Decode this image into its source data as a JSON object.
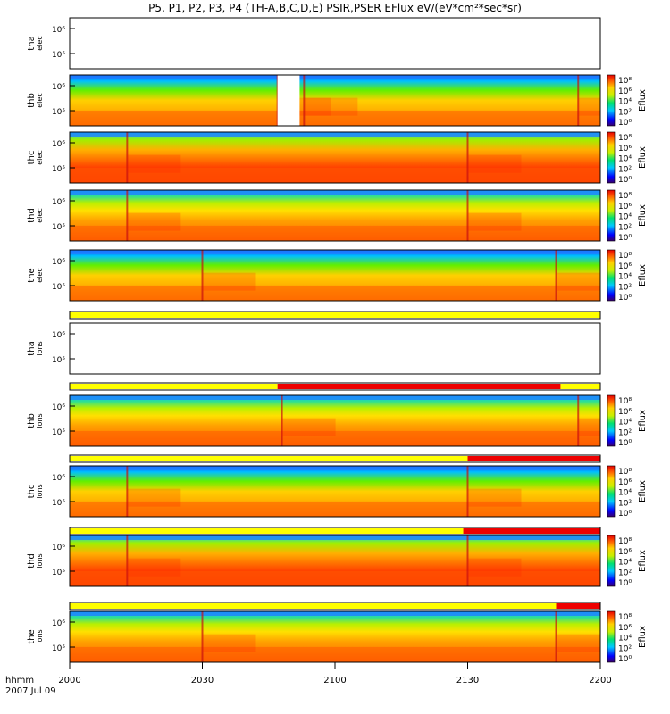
{
  "title": "P5, P1, P2, P3, P4 (TH-A,B,C,D,E) PSIR,PSER EFlux eV/(eV*cm²*sec*sr)",
  "time_axis": {
    "ticks": [
      "2000",
      "2030",
      "2100",
      "2130",
      "2200"
    ],
    "label_row1": "hhmm",
    "label_row2": "2007 Jul 09"
  },
  "colorbar": {
    "label": "Eflux",
    "ticks": [
      "10⁸",
      "10⁶",
      "10⁴",
      "10²",
      "10⁰"
    ]
  },
  "colors": {
    "bar_yellow": "#ffff00",
    "bar_red": "#ee0000"
  },
  "chart_data": {
    "type": "heatmap",
    "x_unit": "hhmm",
    "x_range": [
      "2000",
      "2200"
    ],
    "y_scale": "log",
    "y_ticks": [
      "10⁵",
      "10⁶"
    ],
    "colorbar_range": [
      "10⁰",
      "10⁸"
    ],
    "panels": [
      {
        "id": "tha_elec",
        "label_top": "tha",
        "label_bottom": "elec",
        "has_data": false
      },
      {
        "id": "thb_elec",
        "label_top": "thb",
        "label_bottom": "elec",
        "has_data": true,
        "data_gap": [
          "2047",
          "2052"
        ],
        "transitions": [
          "2047",
          "2053",
          "2155"
        ]
      },
      {
        "id": "thc_elec",
        "label_top": "thc",
        "label_bottom": "elec",
        "has_data": true,
        "transitions": [
          "2013",
          "2130"
        ]
      },
      {
        "id": "thd_elec",
        "label_top": "thd",
        "label_bottom": "elec",
        "has_data": true,
        "transitions": [
          "2013",
          "2130"
        ]
      },
      {
        "id": "the_elec",
        "label_top": "the",
        "label_bottom": "elec",
        "has_data": true,
        "transitions": [
          "2030",
          "2150"
        ]
      },
      {
        "id": "tha_ions",
        "label_top": "tha",
        "label_bottom": "ions",
        "has_data": false
      },
      {
        "id": "thb_ions",
        "label_top": "thb",
        "label_bottom": "ions",
        "has_data": true,
        "transitions": [
          "2048",
          "2155"
        ]
      },
      {
        "id": "thc_ions",
        "label_top": "thc",
        "label_bottom": "ions",
        "has_data": true,
        "transitions": [
          "2013",
          "2130"
        ]
      },
      {
        "id": "thd_ions",
        "label_top": "thd",
        "label_bottom": "ions",
        "has_data": true,
        "transitions": [
          "2013",
          "2130"
        ]
      },
      {
        "id": "the_ions",
        "label_top": "the",
        "label_bottom": "ions",
        "has_data": true,
        "transitions": [
          "2030",
          "2150"
        ]
      }
    ],
    "mode_bars": [
      {
        "after": "the_elec",
        "segments": [
          {
            "from": "2000",
            "to": "2200",
            "color": "yellow"
          }
        ]
      },
      {
        "after": "tha_ions",
        "segments": [
          {
            "from": "2000",
            "to": "2047",
            "color": "yellow"
          },
          {
            "from": "2047",
            "to": "2151",
            "color": "red"
          },
          {
            "from": "2151",
            "to": "2200",
            "color": "yellow"
          }
        ]
      },
      {
        "after": "thb_ions",
        "segments": [
          {
            "from": "2000",
            "to": "2130",
            "color": "yellow"
          },
          {
            "from": "2130",
            "to": "2200",
            "color": "red"
          }
        ]
      },
      {
        "after": "thc_ions",
        "segments": [
          {
            "from": "2000",
            "to": "2129",
            "color": "yellow"
          },
          {
            "from": "2129",
            "to": "2200",
            "color": "red"
          }
        ]
      },
      {
        "after": "thd_ions",
        "segments": [
          {
            "from": "2000",
            "to": "2150",
            "color": "yellow"
          },
          {
            "from": "2150",
            "to": "2200",
            "color": "red"
          }
        ]
      }
    ]
  }
}
